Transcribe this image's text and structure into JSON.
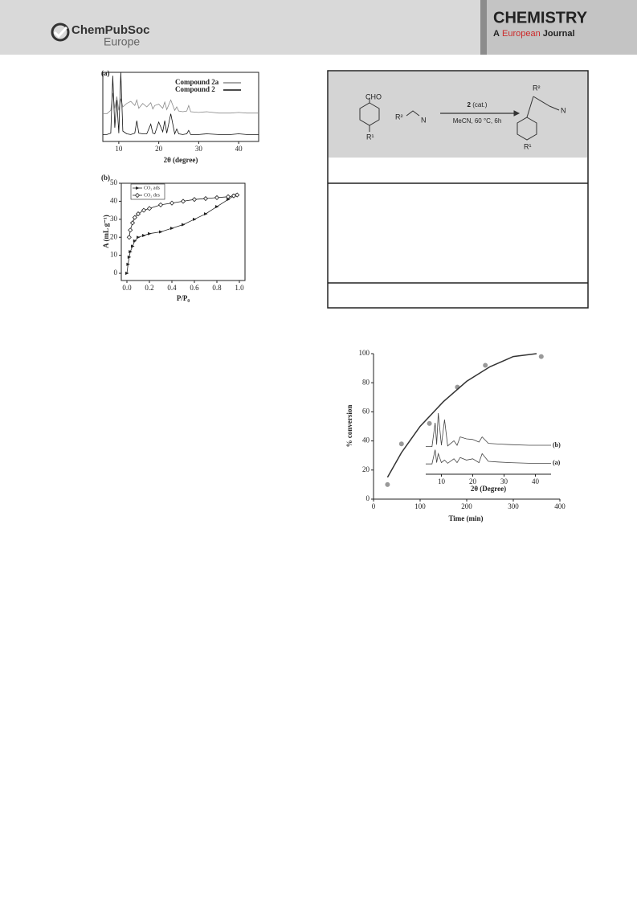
{
  "header": {
    "publisher": "ChemPubSoc",
    "publisher_sub": "Europe",
    "journal": "CHEMISTRY",
    "journal_a": "A",
    "journal_b": "European",
    "journal_c": "Journal"
  },
  "scheme": {
    "aldehyde": "CHO",
    "r1_left": "R¹",
    "nitrile_r2": "R²",
    "nitrile_n": "N",
    "catalyst": "2",
    "catalyst_note": "(cat.)",
    "conditions": "MeCN, 60 °C, 6h",
    "product_r2": "R²",
    "product_n": "N",
    "product_r1": "R¹"
  },
  "chart_data": [
    {
      "type": "line",
      "panel_label": "(a)",
      "x_label": "2θ (degree)",
      "xlim": [
        6,
        45
      ],
      "xticks": [
        10,
        20,
        30,
        40
      ],
      "ylim": [
        0,
        100
      ],
      "x": [
        6,
        7,
        8,
        8.5,
        9,
        9.5,
        10,
        10.5,
        11,
        12,
        13,
        14,
        14.5,
        15,
        16,
        17,
        18,
        18.5,
        19,
        20,
        21,
        21.5,
        22,
        23,
        24,
        24.5,
        25,
        26,
        27,
        27.5,
        28,
        30,
        32,
        35,
        38,
        40,
        42,
        45
      ],
      "series": [
        {
          "name": "Compound 2a",
          "color": "#8a8a8a",
          "values": [
            40,
            40,
            45,
            70,
            48,
            65,
            45,
            62,
            50,
            55,
            58,
            52,
            60,
            48,
            55,
            50,
            56,
            47,
            52,
            54,
            48,
            57,
            46,
            60,
            45,
            50,
            44,
            43,
            44,
            52,
            43,
            42,
            43,
            41,
            41,
            42,
            41,
            41
          ]
        },
        {
          "name": "Compound 2",
          "color": "#111111",
          "values": [
            10,
            10,
            12,
            95,
            20,
            60,
            12,
            100,
            15,
            11,
            10,
            12,
            30,
            12,
            11,
            11,
            25,
            12,
            11,
            28,
            14,
            30,
            12,
            40,
            11,
            18,
            11,
            10,
            11,
            16,
            10,
            10,
            11,
            10,
            10,
            11,
            10,
            10
          ]
        }
      ]
    },
    {
      "type": "line",
      "panel_label": "(b)",
      "x_label": "P/P₀",
      "y_label": "A (mL g⁻¹)",
      "xlim": [
        -0.05,
        1.05
      ],
      "xticks": [
        {
          "value": 0,
          "label": "0.0"
        },
        0.2,
        0.4,
        0.6,
        0.8,
        {
          "value": 1,
          "label": "1.0"
        }
      ],
      "ylim": [
        -4,
        50
      ],
      "yticks": [
        0,
        10,
        20,
        30,
        40,
        50
      ],
      "series": [
        {
          "name": "CO₂ ads",
          "color": "#222222",
          "marker": "triangle",
          "x": [
            0,
            0.01,
            0.02,
            0.03,
            0.05,
            0.07,
            0.1,
            0.15,
            0.2,
            0.3,
            0.4,
            0.5,
            0.6,
            0.7,
            0.8,
            0.9,
            0.95,
            0.98
          ],
          "values": [
            0,
            5,
            9,
            12,
            15,
            18,
            20,
            21,
            22,
            23,
            25,
            27,
            30,
            33,
            37,
            41,
            43,
            43.5
          ]
        },
        {
          "name": "CO₂ des",
          "color": "#222222",
          "marker": "diamond",
          "x": [
            0.98,
            0.95,
            0.9,
            0.8,
            0.7,
            0.6,
            0.5,
            0.4,
            0.3,
            0.2,
            0.15,
            0.1,
            0.07,
            0.05,
            0.03,
            0.02
          ],
          "values": [
            43.5,
            43,
            42.5,
            42,
            41.5,
            41,
            40,
            39,
            38,
            36,
            35,
            33,
            31,
            28,
            24,
            20
          ]
        }
      ]
    },
    {
      "type": "scatter",
      "x_label": "Time (min)",
      "y_label": "% conversion",
      "xlim": [
        0,
        400
      ],
      "xticks": [
        0,
        100,
        200,
        300,
        400
      ],
      "ylim": [
        0,
        100
      ],
      "yticks": [
        0,
        20,
        40,
        60,
        80,
        100
      ],
      "series": [
        {
          "color": "#999999",
          "marker": "circle",
          "x": [
            30,
            60,
            120,
            180,
            240,
            360
          ],
          "values": [
            10,
            38,
            52,
            77,
            92,
            98
          ]
        },
        {
          "color": "#333333",
          "x": [
            30,
            60,
            100,
            150,
            200,
            250,
            300,
            350
          ],
          "values": [
            15,
            32,
            50,
            67,
            81,
            91,
            98,
            100
          ]
        }
      ]
    },
    {
      "type": "line",
      "x_label": "2θ (Degree)",
      "xlim": [
        5,
        45
      ],
      "xticks": [
        10,
        20,
        30,
        40
      ],
      "ylim": [
        0,
        100
      ],
      "x": [
        5,
        7,
        8,
        8.5,
        9,
        10,
        11,
        12,
        14,
        15,
        16,
        18,
        20,
        22,
        23,
        25,
        28,
        32,
        38,
        45
      ],
      "series": [
        {
          "name": "(b)",
          "color": "#444444",
          "values": [
            43,
            43,
            80,
            46,
            95,
            45,
            85,
            44,
            52,
            45,
            58,
            55,
            54,
            50,
            58,
            48,
            47,
            46,
            45,
            45
          ]
        },
        {
          "name": "(a)",
          "color": "#444444",
          "values": [
            16,
            16,
            38,
            18,
            32,
            18,
            22,
            17,
            24,
            18,
            26,
            22,
            24,
            18,
            32,
            20,
            19,
            18,
            17,
            17
          ]
        }
      ]
    }
  ]
}
